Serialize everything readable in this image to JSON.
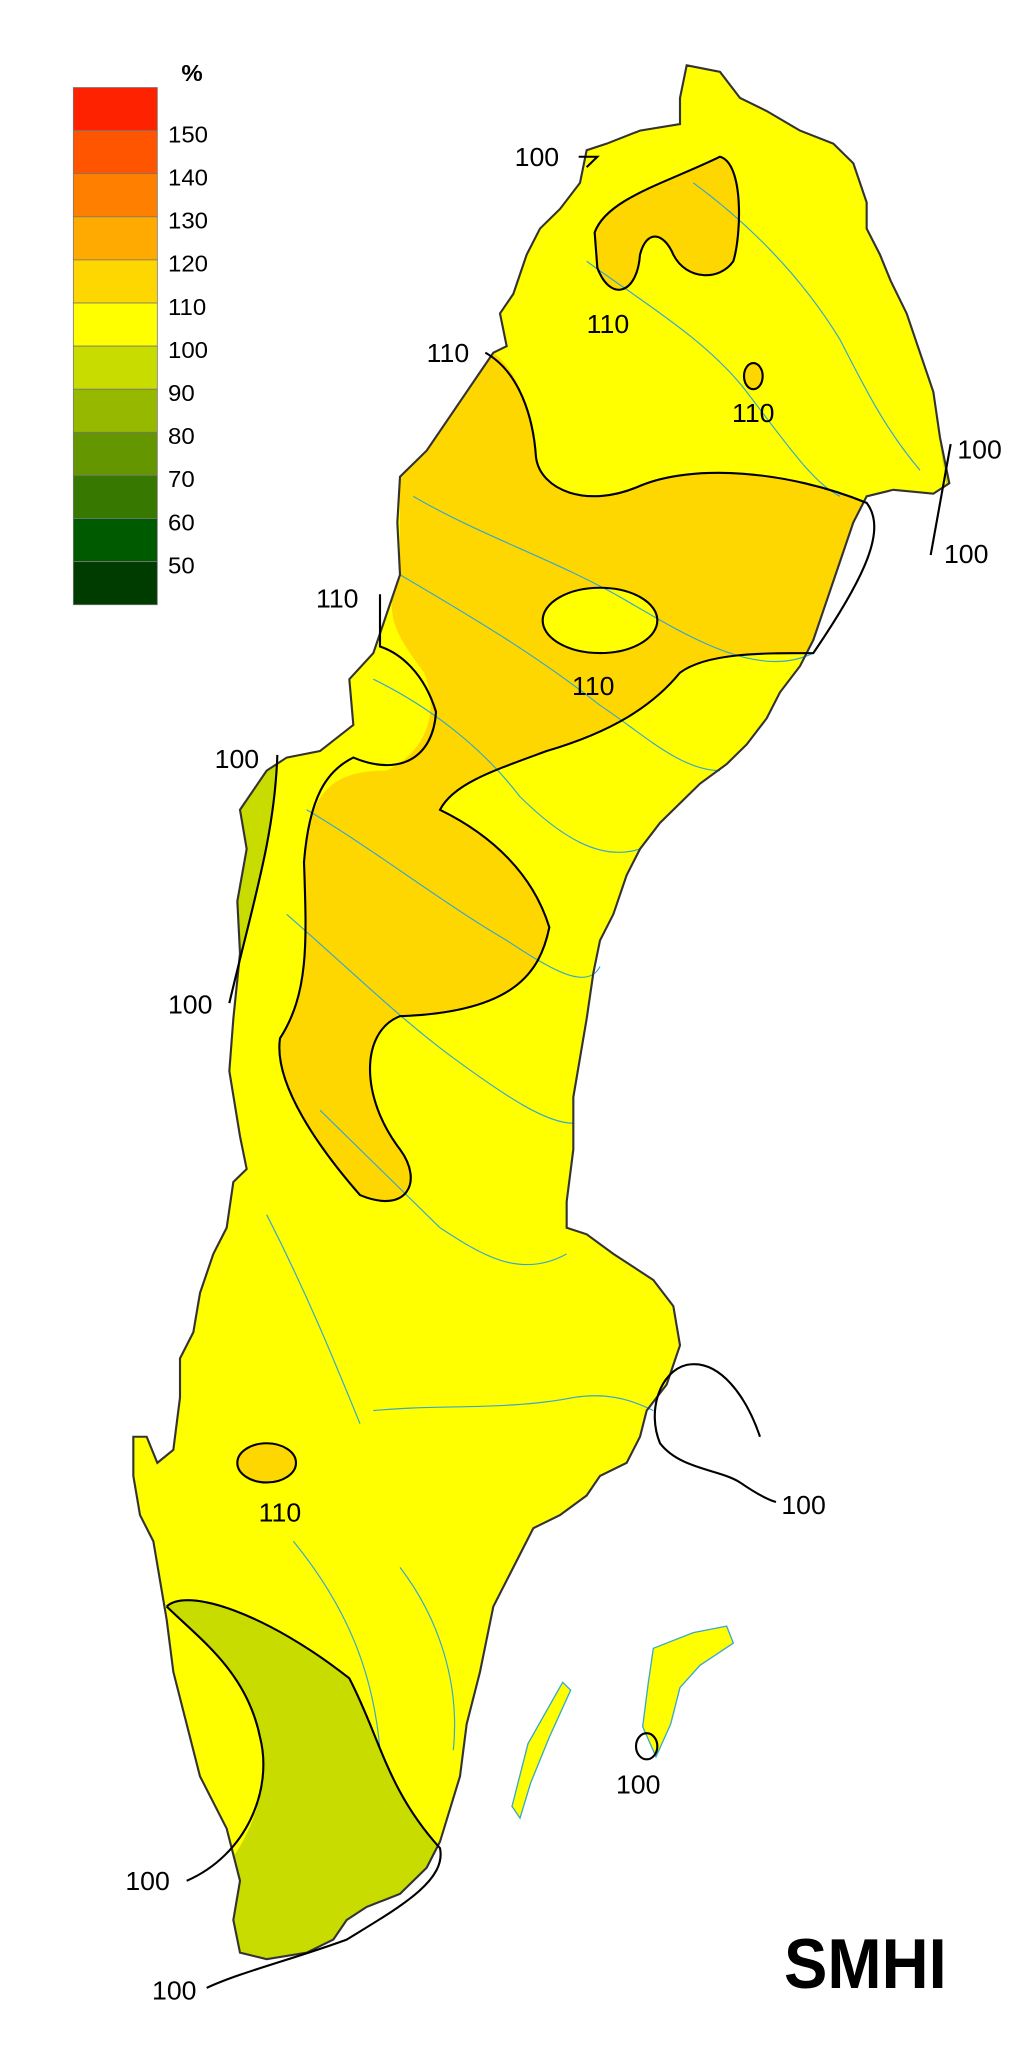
{
  "legend": {
    "unit": "%",
    "labels": [
      "150",
      "140",
      "130",
      "120",
      "110",
      "100",
      "90",
      "80",
      "70",
      "60",
      "50"
    ],
    "colors": [
      "#FF2200",
      "#FF5500",
      "#FF8000",
      "#FFAA00",
      "#FFD700",
      "#FFFF00",
      "#C8DC00",
      "#96B900",
      "#649600",
      "#377800",
      "#005A00",
      "#003C00"
    ]
  },
  "map": {
    "land_color": "#FFFF00",
    "zone_110_120_color": "#FFD700",
    "zone_90_100_color": "#C8DC00",
    "border_color": "#333333",
    "water_color": "#3aa8c8"
  },
  "contour_labels": [
    "100",
    "110",
    "110",
    "110",
    "100",
    "100",
    "110",
    "110",
    "100",
    "100",
    "110",
    "100",
    "100",
    "100",
    "100"
  ],
  "logo": "SMHI"
}
